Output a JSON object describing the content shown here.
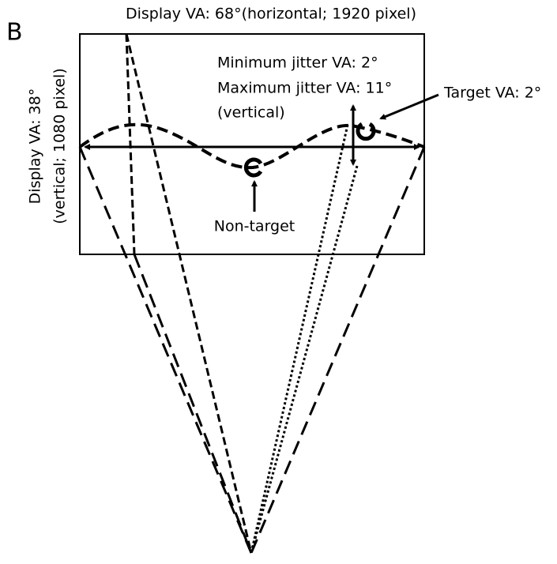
{
  "panel_label": "B",
  "title": "Display VA: 68°(horizontal; 1920 pixel)",
  "vertical_labels": [
    "Display VA: 38°",
    "(vertical; 1080 pixel)"
  ],
  "jitter_labels": [
    "Minimum jitter VA: 2°",
    "Maximum jitter VA: 11°",
    "(vertical)"
  ],
  "target_label": "Target VA: 2°",
  "nontarget_label": "Non-target"
}
